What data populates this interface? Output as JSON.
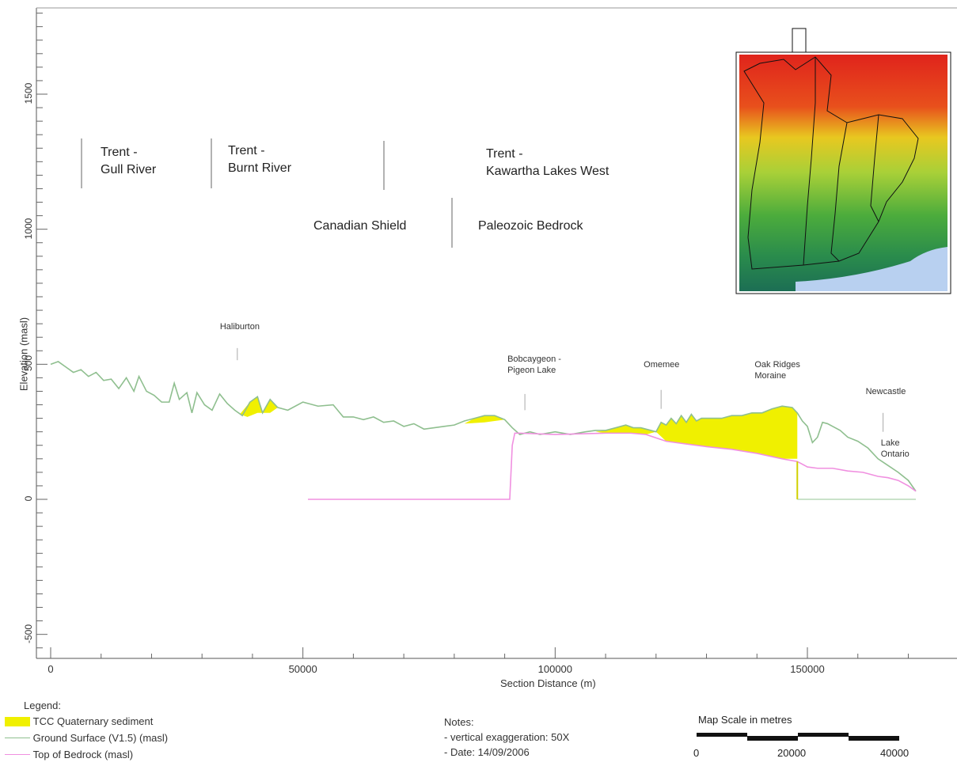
{
  "chart_data": {
    "type": "area",
    "xlabel": "Section Distance (m)",
    "ylabel": "Elevation (masl)",
    "xlim": [
      0,
      178000
    ],
    "ylim": [
      -580,
      1830
    ],
    "x_ticks": [
      0,
      50000,
      100000,
      150000
    ],
    "y_ticks": [
      -500,
      0,
      500,
      1000,
      1500
    ],
    "grid": false,
    "series": [
      {
        "name": "Ground Surface (V1.5) (masl)",
        "color": "#8fbf8f",
        "points": [
          [
            0,
            500
          ],
          [
            1500,
            510
          ],
          [
            3000,
            490
          ],
          [
            4500,
            470
          ],
          [
            6000,
            480
          ],
          [
            7500,
            455
          ],
          [
            9000,
            470
          ],
          [
            10500,
            440
          ],
          [
            12000,
            445
          ],
          [
            13500,
            410
          ],
          [
            15000,
            450
          ],
          [
            16500,
            400
          ],
          [
            17500,
            455
          ],
          [
            19000,
            400
          ],
          [
            20500,
            385
          ],
          [
            22000,
            360
          ],
          [
            23500,
            360
          ],
          [
            24500,
            430
          ],
          [
            25500,
            370
          ],
          [
            27000,
            395
          ],
          [
            28000,
            320
          ],
          [
            29000,
            395
          ],
          [
            30500,
            350
          ],
          [
            32000,
            330
          ],
          [
            33500,
            390
          ],
          [
            35000,
            355
          ],
          [
            36500,
            330
          ],
          [
            38000,
            310
          ],
          [
            39500,
            360
          ],
          [
            41000,
            380
          ],
          [
            42000,
            320
          ],
          [
            43500,
            370
          ],
          [
            45000,
            340
          ],
          [
            47000,
            330
          ],
          [
            50000,
            360
          ],
          [
            53000,
            345
          ],
          [
            56000,
            350
          ],
          [
            58000,
            305
          ],
          [
            60000,
            305
          ],
          [
            62000,
            295
          ],
          [
            64000,
            305
          ],
          [
            66000,
            285
          ],
          [
            68000,
            290
          ],
          [
            70000,
            270
          ],
          [
            72000,
            280
          ],
          [
            74000,
            260
          ],
          [
            76000,
            265
          ],
          [
            78000,
            270
          ],
          [
            80000,
            275
          ],
          [
            82000,
            290
          ],
          [
            84000,
            300
          ],
          [
            86000,
            310
          ],
          [
            88000,
            310
          ],
          [
            90000,
            295
          ],
          [
            91500,
            265
          ],
          [
            93000,
            240
          ],
          [
            95000,
            250
          ],
          [
            97000,
            240
          ],
          [
            100000,
            250
          ],
          [
            103000,
            240
          ],
          [
            106000,
            250
          ],
          [
            108000,
            255
          ],
          [
            110000,
            255
          ],
          [
            112000,
            265
          ],
          [
            114000,
            275
          ],
          [
            115500,
            265
          ],
          [
            117000,
            265
          ],
          [
            119000,
            255
          ],
          [
            120000,
            250
          ],
          [
            121000,
            285
          ],
          [
            122000,
            275
          ],
          [
            123000,
            300
          ],
          [
            124000,
            280
          ],
          [
            125000,
            310
          ],
          [
            126000,
            285
          ],
          [
            127000,
            315
          ],
          [
            128000,
            290
          ],
          [
            129000,
            300
          ],
          [
            131000,
            300
          ],
          [
            133000,
            300
          ],
          [
            135000,
            310
          ],
          [
            137000,
            310
          ],
          [
            139000,
            320
          ],
          [
            141000,
            320
          ],
          [
            143000,
            335
          ],
          [
            145000,
            345
          ],
          [
            147000,
            340
          ],
          [
            148000,
            320
          ],
          [
            149000,
            290
          ],
          [
            150000,
            270
          ],
          [
            151000,
            210
          ],
          [
            152000,
            230
          ],
          [
            153000,
            285
          ],
          [
            154000,
            280
          ],
          [
            155000,
            270
          ],
          [
            156500,
            255
          ],
          [
            158000,
            230
          ],
          [
            160000,
            215
          ],
          [
            162000,
            190
          ],
          [
            164000,
            150
          ],
          [
            166000,
            125
          ],
          [
            168000,
            100
          ],
          [
            170000,
            70
          ],
          [
            171500,
            30
          ]
        ]
      },
      {
        "name": "Top of Bedrock (masl)",
        "color": "#f090e0",
        "points": [
          [
            51000,
            0
          ],
          [
            91000,
            0
          ],
          [
            91500,
            200
          ],
          [
            92000,
            245
          ],
          [
            93000,
            245
          ],
          [
            100000,
            240
          ],
          [
            110000,
            245
          ],
          [
            115000,
            245
          ],
          [
            118000,
            240
          ],
          [
            122000,
            215
          ],
          [
            126000,
            205
          ],
          [
            130000,
            195
          ],
          [
            135000,
            185
          ],
          [
            140000,
            170
          ],
          [
            145000,
            150
          ],
          [
            148000,
            140
          ],
          [
            150000,
            120
          ],
          [
            152000,
            115
          ],
          [
            155000,
            115
          ],
          [
            158000,
            105
          ],
          [
            161000,
            100
          ],
          [
            164000,
            85
          ],
          [
            166000,
            80
          ],
          [
            168000,
            70
          ],
          [
            170000,
            50
          ],
          [
            171500,
            30
          ]
        ]
      },
      {
        "name": "TCC Quaternary sediment",
        "color": "#f0f000",
        "polygons": [
          [
            [
              37500,
              315
            ],
            [
              39500,
              360
            ],
            [
              41000,
              380
            ],
            [
              42000,
              320
            ],
            [
              43500,
              370
            ],
            [
              45000,
              340
            ],
            [
              43500,
              320
            ],
            [
              41000,
              320
            ],
            [
              39000,
              305
            ]
          ],
          [
            [
              82000,
              280
            ],
            [
              84000,
              300
            ],
            [
              86000,
              310
            ],
            [
              88000,
              310
            ],
            [
              90000,
              295
            ],
            [
              86000,
              285
            ]
          ],
          [
            [
              108000,
              250
            ],
            [
              110000,
              255
            ],
            [
              112000,
              265
            ],
            [
              114000,
              275
            ],
            [
              115500,
              265
            ],
            [
              117000,
              265
            ],
            [
              119000,
              255
            ],
            [
              120000,
              250
            ],
            [
              118000,
              240
            ],
            [
              114000,
              245
            ],
            [
              110000,
              245
            ]
          ],
          [
            [
              120000,
              250
            ],
            [
              121000,
              285
            ],
            [
              122000,
              275
            ],
            [
              123000,
              300
            ],
            [
              124000,
              280
            ],
            [
              125000,
              310
            ],
            [
              126000,
              285
            ],
            [
              127000,
              315
            ],
            [
              128000,
              290
            ],
            [
              129000,
              300
            ],
            [
              131000,
              300
            ],
            [
              133000,
              300
            ],
            [
              135000,
              310
            ],
            [
              137000,
              310
            ],
            [
              139000,
              320
            ],
            [
              141000,
              320
            ],
            [
              143000,
              335
            ],
            [
              145000,
              345
            ],
            [
              147000,
              340
            ],
            [
              148000,
              320
            ],
            [
              148000,
              150
            ],
            [
              145000,
              150
            ],
            [
              140000,
              170
            ],
            [
              135000,
              185
            ],
            [
              130000,
              195
            ],
            [
              126000,
              205
            ],
            [
              122000,
              215
            ]
          ]
        ]
      },
      {
        "name": "Lake Ontario level",
        "color": "#b8d8b8",
        "points": [
          [
            148000,
            0
          ],
          [
            171500,
            0
          ]
        ]
      }
    ],
    "annotations": [
      {
        "text": "Haliburton",
        "x": 37000,
        "y_text": 630,
        "y_top": 560,
        "y_bottom": 515
      },
      {
        "text": "Bobcaygeon -\nPigeon Lake",
        "x": 94000,
        "y_text": 510,
        "y_top": 390,
        "y_bottom": 330
      },
      {
        "text": "Omemee",
        "x": 121000,
        "y_text": 490,
        "y_top": 405,
        "y_bottom": 335
      },
      {
        "text": "Oak Ridges\nMoraine",
        "x": 143000,
        "y_text": 490,
        "y_top": 0,
        "y_bottom": 0
      },
      {
        "text": "Newcastle",
        "x": 165000,
        "y_text": 390,
        "y_top": 320,
        "y_bottom": 250
      },
      {
        "text": "Lake\nOntario",
        "x": 168000,
        "y_text": 200,
        "y_top": 0,
        "y_bottom": 0
      }
    ]
  },
  "regions": {
    "gull": "Trent -\nGull River",
    "burnt": "Trent -\nBurnt River",
    "kawartha": "Trent -\nKawartha Lakes West",
    "shield": "Canadian Shield",
    "paleozoic": "Paleozoic Bedrock"
  },
  "legend": {
    "title": "Legend:",
    "items": [
      {
        "label": "TCC Quaternary sediment",
        "color": "#f0f000"
      },
      {
        "label": "Ground Surface (V1.5) (masl)",
        "color": "#8fbf8f"
      },
      {
        "label": "Top of Bedrock (masl)",
        "color": "#f090e0"
      }
    ]
  },
  "notes": {
    "title": "Notes:",
    "lines": [
      "- vertical exaggeration: 50X",
      "- Date:  14/09/2006"
    ]
  },
  "scalebar": {
    "title": "Map Scale in metres",
    "labels": [
      "0",
      "20000",
      "40000"
    ]
  },
  "inset_map": {
    "description_colors": [
      "#e0241c",
      "#f0a020",
      "#e8e020",
      "#8ac84a",
      "#2e9a3c",
      "#1e7a5e",
      "#b8d0f0"
    ]
  }
}
